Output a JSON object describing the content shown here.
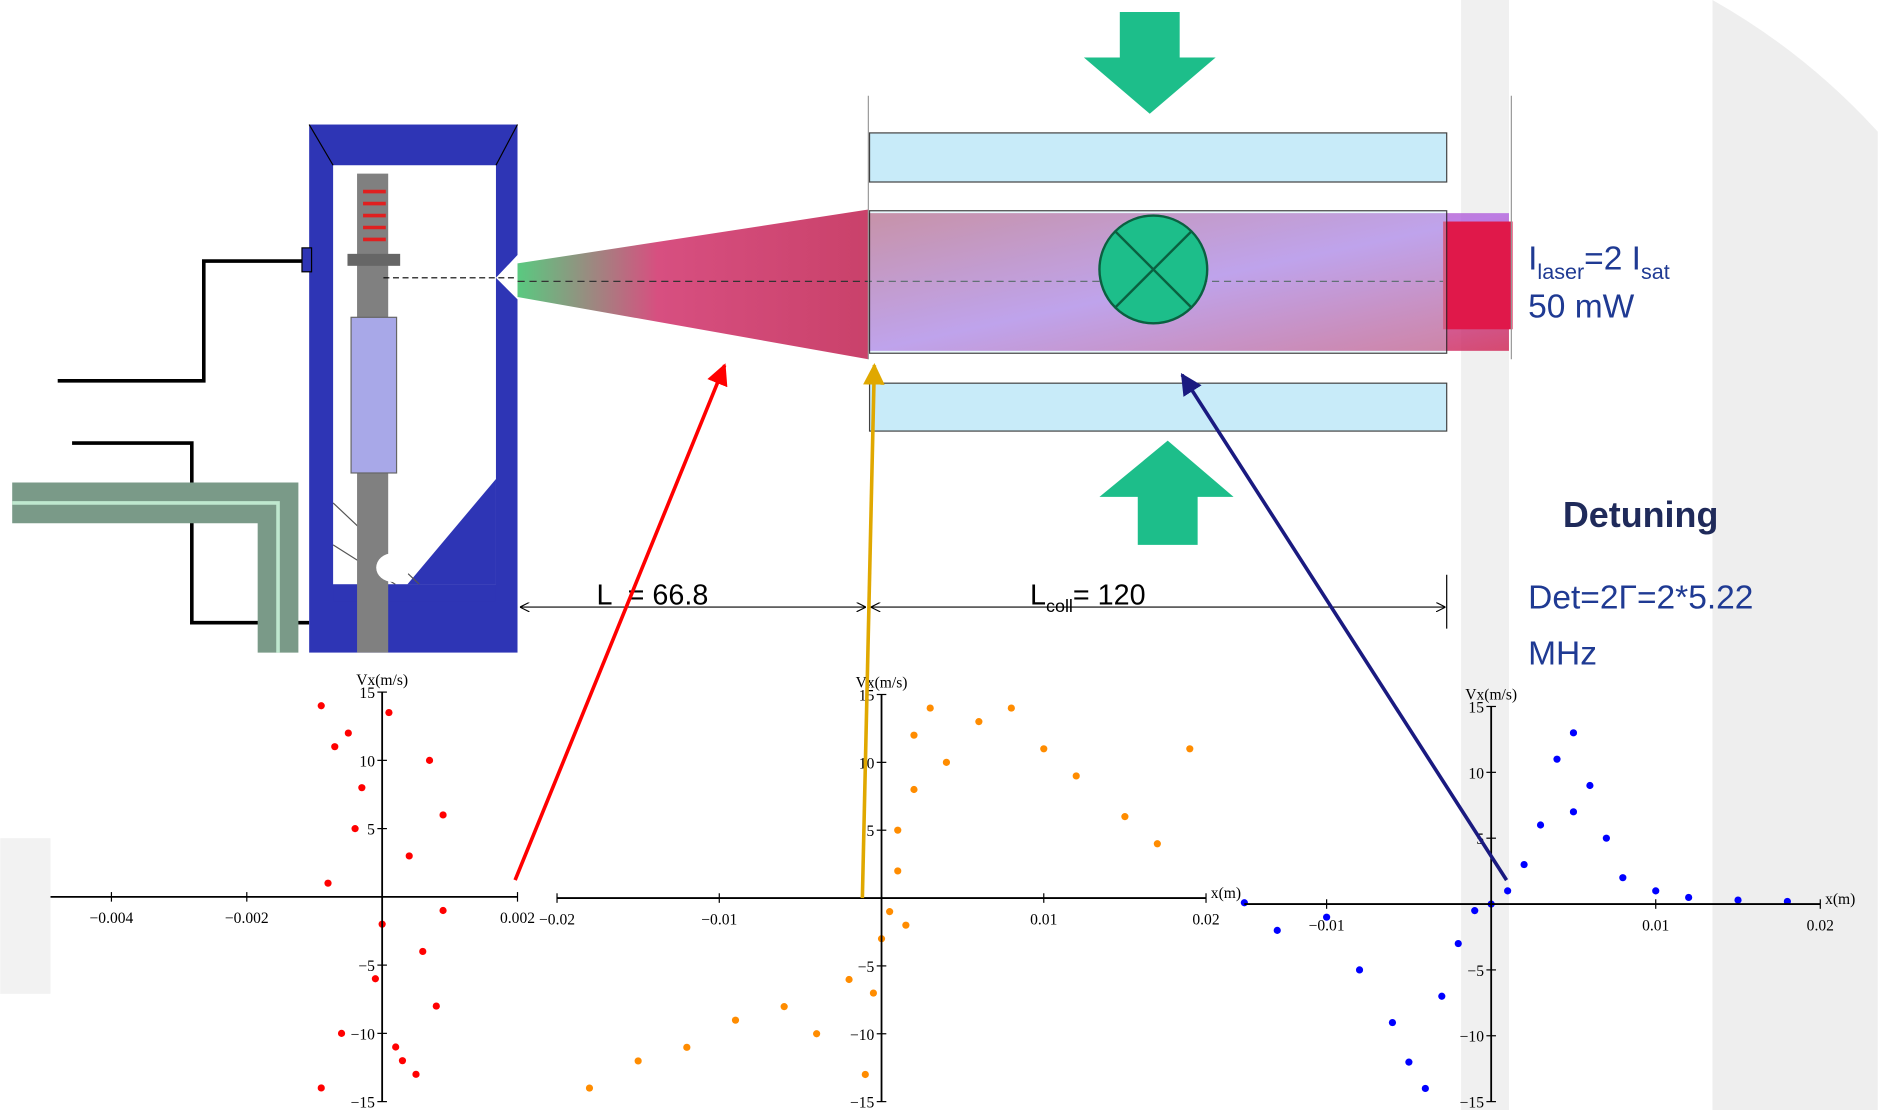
{
  "diagram": {
    "laser": {
      "i1": "I",
      "sub1": "laser",
      "mid": "=2 I",
      "sub2": "sat",
      "power": "50 mW"
    },
    "detuning_title": "Detuning",
    "detuning_lines": [
      "Det=2Γ=2*5.22",
      "MHz"
    ],
    "l0": {
      "symbol": "L",
      "value": "= 66.8"
    },
    "lcoll": {
      "symbol": "L",
      "sub": "coll",
      "value": "= 120"
    }
  },
  "chart_data": [
    {
      "type": "scatter",
      "y_label": "Vx(m/s)",
      "color": "#ff0000",
      "xlim": [
        -0.0049,
        0.002
      ],
      "ylim": [
        -15,
        15
      ],
      "xticks": [
        {
          "value": -0.004,
          "label": "−0.004"
        },
        {
          "value": -0.002,
          "label": "−0.002"
        },
        0.002
      ],
      "yticks": [
        15,
        10,
        5,
        {
          "value": -5,
          "label": "−5"
        },
        {
          "value": -10,
          "label": "−10"
        },
        {
          "value": -15,
          "label": "−15"
        }
      ],
      "x": [
        -0.0009,
        -0.0005,
        0.0001,
        0.0007,
        0.0009,
        -0.0003,
        0.0004,
        -0.0008,
        0.0,
        0.0006,
        -0.0001,
        0.0008,
        -0.0006,
        0.0003,
        -0.0009,
        0.0005,
        -0.0004,
        0.0009,
        0.0002,
        -0.0007
      ],
      "values": [
        14,
        12,
        13.5,
        10,
        6,
        8,
        3,
        1,
        -2,
        -4,
        -6,
        -8,
        -10,
        -12,
        -14,
        -13,
        5,
        -1,
        -11,
        11
      ]
    },
    {
      "type": "scatter",
      "y_label": "Vx(m/s)",
      "x_label": "x(m)",
      "color": "#ff8c00",
      "xlim": [
        -0.02,
        0.02
      ],
      "ylim": [
        -15,
        15
      ],
      "xticks": [
        {
          "value": -0.02,
          "label": "−0.02"
        },
        {
          "value": -0.01,
          "label": "−0.01"
        },
        0.01,
        0.02
      ],
      "yticks": [
        15,
        10,
        5,
        {
          "value": -5,
          "label": "−5"
        },
        {
          "value": -10,
          "label": "−10"
        },
        {
          "value": -15,
          "label": "−15"
        }
      ],
      "x": [
        -0.018,
        -0.015,
        -0.012,
        -0.009,
        -0.006,
        -0.004,
        -0.002,
        -0.001,
        0,
        0.0005,
        0.001,
        0.001,
        0.002,
        0.002,
        0.003,
        0.004,
        0.006,
        0.008,
        0.01,
        0.012,
        0.015,
        0.017,
        0.019,
        0.0015,
        -0.0005
      ],
      "values": [
        -14,
        -12,
        -11,
        -9,
        -8,
        -10,
        -6,
        -13,
        -3,
        -1,
        2,
        5,
        8,
        12,
        14,
        10,
        13,
        14,
        11,
        9,
        6,
        4,
        11,
        -2,
        -7
      ]
    },
    {
      "type": "scatter",
      "y_label": "Vx(m/s)",
      "x_label": "x(m)",
      "color": "#0000ff",
      "xlim": [
        -0.015,
        0.02
      ],
      "ylim": [
        -15,
        15
      ],
      "xticks": [
        {
          "value": -0.01,
          "label": "−0.01"
        },
        0.01,
        0.02
      ],
      "yticks": [
        15,
        10,
        5,
        {
          "value": -5,
          "label": "−5"
        },
        {
          "value": -10,
          "label": "−10"
        },
        {
          "value": -15,
          "label": "−15"
        }
      ],
      "x": [
        -0.013,
        -0.01,
        -0.008,
        -0.006,
        -0.005,
        -0.004,
        -0.003,
        -0.002,
        -0.001,
        0,
        0.001,
        0.002,
        0.003,
        0.004,
        0.005,
        0.006,
        0.007,
        0.008,
        0.01,
        0.012,
        0.015,
        0.018,
        -0.015,
        0.005
      ],
      "values": [
        -2,
        -1,
        -5,
        -9,
        -12,
        -14,
        -7,
        -3,
        -0.5,
        0,
        1,
        3,
        6,
        11,
        13,
        9,
        5,
        2,
        1,
        0.5,
        0.3,
        0.2,
        0.1,
        7
      ]
    }
  ]
}
